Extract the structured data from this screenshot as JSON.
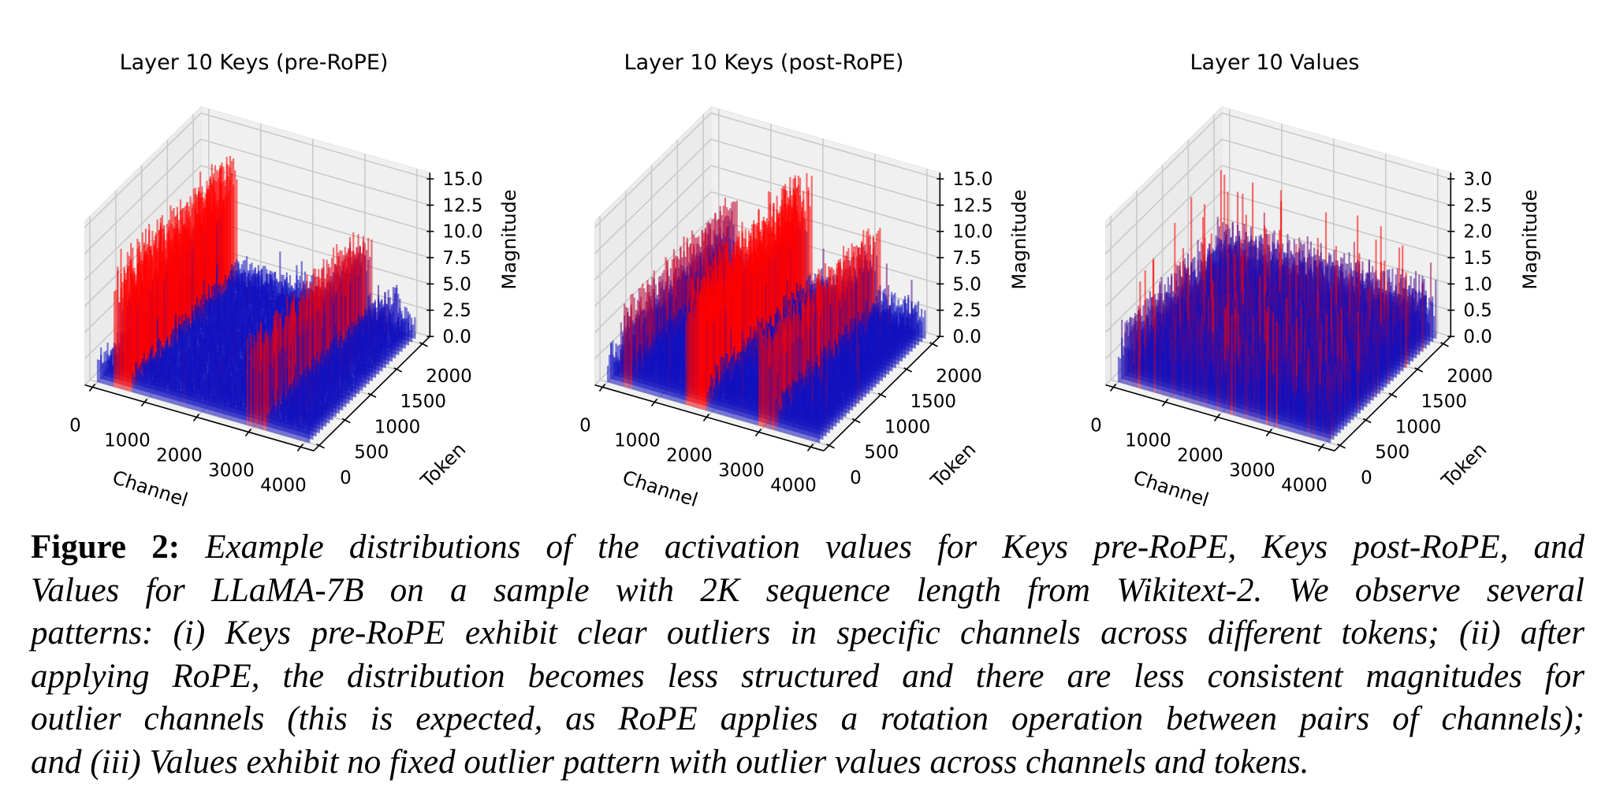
{
  "chart_data": [
    {
      "type": "bar3d",
      "title": "Layer 10 Keys (pre-RoPE)",
      "xlabel": "Channel",
      "ylabel": "Token",
      "zlabel": "Magnitude",
      "xticks": [
        "0",
        "1000",
        "2000",
        "3000",
        "4000"
      ],
      "yticks": [
        "0",
        "500",
        "1000",
        "1500",
        "2000"
      ],
      "zticks": [
        "0.0",
        "2.5",
        "5.0",
        "7.5",
        "10.0",
        "12.5",
        "15.0"
      ],
      "xlim": [
        0,
        4096
      ],
      "ylim": [
        0,
        2048
      ],
      "zlim": [
        0,
        15
      ],
      "grid": true,
      "typical_magnitude": 3,
      "outlier_bands": [
        {
          "channel_range": [
            300,
            650
          ],
          "magnitude": 12
        },
        {
          "channel_range": [
            2850,
            3250
          ],
          "magnitude": 8.5
        },
        {
          "channel_range": [
            3650,
            3800
          ],
          "magnitude": 5
        }
      ],
      "colors": {
        "low": "#1010c0",
        "high": "#ff0000"
      }
    },
    {
      "type": "bar3d",
      "title": "Layer 10 Keys (post-RoPE)",
      "xlabel": "Channel",
      "ylabel": "Token",
      "zlabel": "Magnitude",
      "xticks": [
        "0",
        "1000",
        "2000",
        "3000",
        "4000"
      ],
      "yticks": [
        "0",
        "500",
        "1000",
        "1500",
        "2000"
      ],
      "zticks": [
        "0.0",
        "2.5",
        "5.0",
        "7.5",
        "10.0",
        "12.5",
        "15.0"
      ],
      "xlim": [
        0,
        4096
      ],
      "ylim": [
        0,
        2048
      ],
      "zlim": [
        0,
        15
      ],
      "grid": true,
      "typical_magnitude": 4,
      "outlier_bands": [
        {
          "channel_range": [
            250,
            450
          ],
          "magnitude": 8
        },
        {
          "channel_range": [
            1500,
            1900
          ],
          "magnitude": 12
        },
        {
          "channel_range": [
            2900,
            3200
          ],
          "magnitude": 9
        }
      ],
      "colors": {
        "low": "#1010c0",
        "high": "#ff0000"
      }
    },
    {
      "type": "bar3d",
      "title": "Layer 10 Values",
      "xlabel": "Channel",
      "ylabel": "Token",
      "zlabel": "Magnitude",
      "xticks": [
        "0",
        "1000",
        "2000",
        "3000",
        "4000"
      ],
      "yticks": [
        "0",
        "500",
        "1000",
        "1500",
        "2000"
      ],
      "zticks": [
        "0.0",
        "0.5",
        "1.0",
        "1.5",
        "2.0",
        "2.5",
        "3.0"
      ],
      "xlim": [
        0,
        4096
      ],
      "ylim": [
        0,
        2048
      ],
      "zlim": [
        0,
        3
      ],
      "grid": true,
      "typical_magnitude": 1.2,
      "outlier_bands": [],
      "colors": {
        "low": "#1010c0",
        "high": "#ff0000"
      }
    }
  ],
  "caption": {
    "label": "Figure 2:",
    "lines": [
      " Example distributions of the activation values for Keys pre-RoPE, Keys post-RoPE, and",
      "Values for LLaMA-7B on a sample with 2K sequence length from Wikitext-2. We observe several",
      "patterns: (i) Keys pre-RoPE exhibit clear outliers in specific channels across different tokens; (ii) after",
      "applying RoPE, the distribution becomes less structured and there are less consistent magnitudes for",
      "outlier channels (this is expected, as RoPE applies a rotation operation between pairs of channels);",
      "and (iii) Values exhibit no fixed outlier pattern with outlier values across channels and tokens."
    ]
  }
}
